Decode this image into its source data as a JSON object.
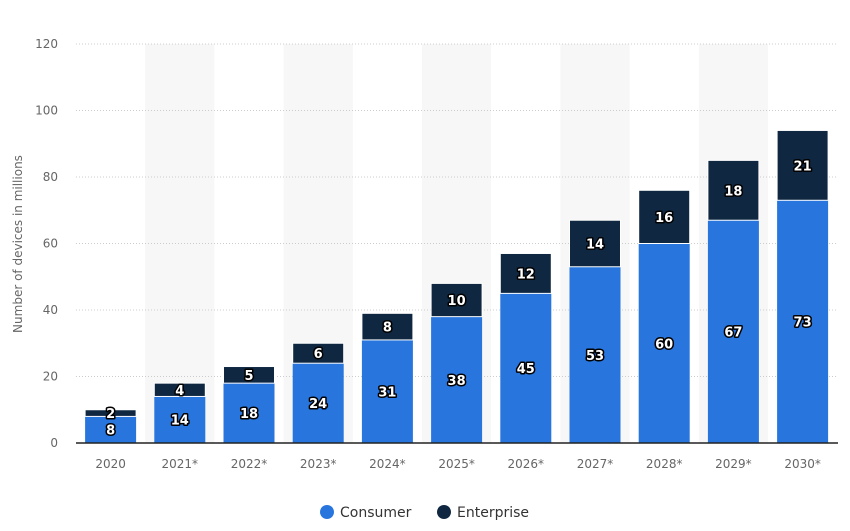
{
  "chart_data": {
    "type": "bar",
    "stacked": true,
    "categories": [
      "2020",
      "2021*",
      "2022*",
      "2023*",
      "2024*",
      "2025*",
      "2026*",
      "2027*",
      "2028*",
      "2029*",
      "2030*"
    ],
    "series": [
      {
        "name": "Consumer",
        "color": "#2876dd",
        "values": [
          8,
          14,
          18,
          24,
          31,
          38,
          45,
          53,
          60,
          67,
          73
        ]
      },
      {
        "name": "Enterprise",
        "color": "#0f2741",
        "values": [
          2,
          4,
          5,
          6,
          8,
          10,
          12,
          14,
          16,
          18,
          21
        ]
      }
    ],
    "ylabel": "Number of devices in millions",
    "ylim": [
      0,
      120
    ],
    "yticks": [
      0,
      20,
      40,
      60,
      80,
      100,
      120
    ],
    "grid": true,
    "legend": "bottom"
  }
}
